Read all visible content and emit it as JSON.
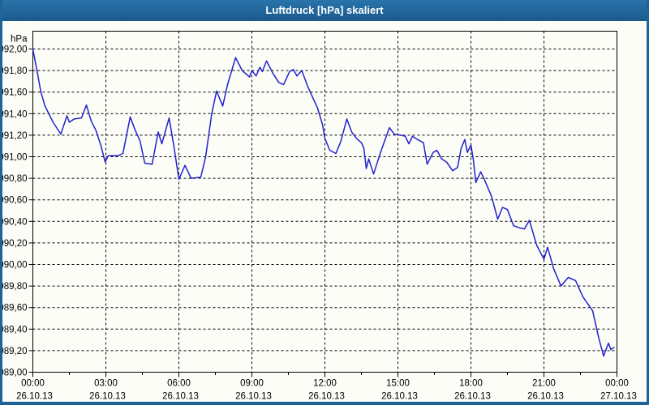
{
  "window": {
    "title": "Luftdruck [hPa] skaliert"
  },
  "colors": {
    "titlebar": "#1F6497",
    "frame": "#1F6497",
    "title_text": "#FFFFFF",
    "background": "#FDFDF7",
    "grid": "#000000",
    "axis": "#000000",
    "tick_text": "#000000",
    "line": "#2121CE"
  },
  "chart_data": {
    "type": "line",
    "title": "Luftdruck [hPa] skaliert",
    "ylabel": "hPa",
    "xlabel": "",
    "grid": "dashed",
    "legend": "none",
    "ylim": [
      989.0,
      992.0
    ],
    "y_tick_step": 0.2,
    "y_tick_labels": [
      "992,00",
      "991,80",
      "991,60",
      "991,40",
      "991,20",
      "991,00",
      "990,80",
      "990,60",
      "990,40",
      "990,20",
      "990,00",
      "989,80",
      "989,60",
      "989,40",
      "989,20",
      "989,00"
    ],
    "xlim_hours": [
      0,
      24
    ],
    "x_major_step_hours": 3,
    "x_minor_step_hours": 1.5,
    "x_ticks": [
      {
        "time": "00:00",
        "date": "26.10.13"
      },
      {
        "time": "03:00",
        "date": "26.10.13"
      },
      {
        "time": "06:00",
        "date": "26.10.13"
      },
      {
        "time": "09:00",
        "date": "26.10.13"
      },
      {
        "time": "12:00",
        "date": "26.10.13"
      },
      {
        "time": "15:00",
        "date": "26.10.13"
      },
      {
        "time": "18:00",
        "date": "26.10.13"
      },
      {
        "time": "21:00",
        "date": "26.10.13"
      },
      {
        "time": "00:00",
        "date": "27.10.13"
      }
    ],
    "series": [
      {
        "name": "Luftdruck",
        "unit": "hPa",
        "color": "#2121CE",
        "points": [
          [
            0.0,
            992.0
          ],
          [
            0.17,
            991.8
          ],
          [
            0.33,
            991.6
          ],
          [
            0.5,
            991.47
          ],
          [
            0.83,
            991.32
          ],
          [
            1.15,
            991.21
          ],
          [
            1.4,
            991.38
          ],
          [
            1.5,
            991.32
          ],
          [
            1.7,
            991.35
          ],
          [
            2.0,
            991.36
          ],
          [
            2.2,
            991.48
          ],
          [
            2.4,
            991.33
          ],
          [
            2.6,
            991.24
          ],
          [
            2.8,
            991.1
          ],
          [
            2.97,
            990.95
          ],
          [
            3.1,
            991.01
          ],
          [
            3.5,
            991.01
          ],
          [
            3.7,
            991.03
          ],
          [
            4.0,
            991.37
          ],
          [
            4.2,
            991.25
          ],
          [
            4.4,
            991.15
          ],
          [
            4.6,
            990.94
          ],
          [
            4.9,
            990.93
          ],
          [
            5.15,
            991.23
          ],
          [
            5.3,
            991.12
          ],
          [
            5.6,
            991.36
          ],
          [
            5.8,
            991.09
          ],
          [
            6.0,
            990.79
          ],
          [
            6.25,
            990.92
          ],
          [
            6.5,
            990.8
          ],
          [
            6.9,
            990.81
          ],
          [
            7.1,
            991.0
          ],
          [
            7.35,
            991.4
          ],
          [
            7.55,
            991.61
          ],
          [
            7.8,
            991.47
          ],
          [
            8.0,
            991.67
          ],
          [
            8.33,
            991.92
          ],
          [
            8.6,
            991.8
          ],
          [
            8.9,
            991.74
          ],
          [
            9.0,
            991.8
          ],
          [
            9.17,
            991.75
          ],
          [
            9.33,
            991.83
          ],
          [
            9.43,
            991.79
          ],
          [
            9.6,
            991.89
          ],
          [
            9.85,
            991.78
          ],
          [
            10.1,
            991.69
          ],
          [
            10.3,
            991.67
          ],
          [
            10.55,
            991.79
          ],
          [
            10.7,
            991.81
          ],
          [
            10.85,
            991.75
          ],
          [
            11.05,
            991.8
          ],
          [
            11.3,
            991.65
          ],
          [
            11.5,
            991.55
          ],
          [
            11.7,
            991.45
          ],
          [
            11.9,
            991.3
          ],
          [
            12.0,
            991.17
          ],
          [
            12.2,
            991.06
          ],
          [
            12.45,
            991.03
          ],
          [
            12.65,
            991.14
          ],
          [
            12.9,
            991.35
          ],
          [
            13.1,
            991.23
          ],
          [
            13.3,
            991.17
          ],
          [
            13.5,
            991.13
          ],
          [
            13.6,
            991.08
          ],
          [
            13.7,
            990.89
          ],
          [
            13.8,
            990.98
          ],
          [
            14.0,
            990.84
          ],
          [
            14.3,
            991.05
          ],
          [
            14.65,
            991.27
          ],
          [
            14.85,
            991.21
          ],
          [
            15.1,
            991.2
          ],
          [
            15.3,
            991.19
          ],
          [
            15.45,
            991.12
          ],
          [
            15.6,
            991.19
          ],
          [
            15.8,
            991.16
          ],
          [
            16.05,
            991.13
          ],
          [
            16.2,
            990.93
          ],
          [
            16.45,
            991.04
          ],
          [
            16.6,
            991.06
          ],
          [
            16.8,
            990.98
          ],
          [
            17.0,
            990.95
          ],
          [
            17.25,
            990.87
          ],
          [
            17.45,
            990.9
          ],
          [
            17.6,
            991.08
          ],
          [
            17.75,
            991.16
          ],
          [
            17.85,
            991.04
          ],
          [
            18.0,
            991.11
          ],
          [
            18.1,
            990.97
          ],
          [
            18.2,
            990.76
          ],
          [
            18.4,
            990.86
          ],
          [
            18.55,
            990.79
          ],
          [
            18.85,
            990.63
          ],
          [
            19.1,
            990.42
          ],
          [
            19.3,
            990.53
          ],
          [
            19.5,
            990.51
          ],
          [
            19.75,
            990.36
          ],
          [
            20.0,
            990.34
          ],
          [
            20.2,
            990.33
          ],
          [
            20.4,
            990.41
          ],
          [
            20.7,
            990.18
          ],
          [
            21.0,
            990.05
          ],
          [
            21.15,
            990.16
          ],
          [
            21.4,
            989.96
          ],
          [
            21.7,
            989.8
          ],
          [
            22.0,
            989.88
          ],
          [
            22.3,
            989.85
          ],
          [
            22.6,
            989.7
          ],
          [
            23.0,
            989.57
          ],
          [
            23.25,
            989.32
          ],
          [
            23.45,
            989.15
          ],
          [
            23.65,
            989.27
          ],
          [
            23.75,
            989.21
          ],
          [
            23.88,
            989.23
          ]
        ]
      }
    ]
  }
}
